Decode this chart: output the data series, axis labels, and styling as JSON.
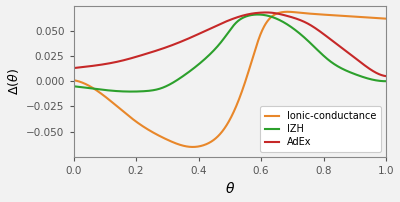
{
  "title": "",
  "xlabel": "$\\theta$",
  "ylabel": "$\\Delta(\\theta)$",
  "xlim": [
    0.0,
    1.0
  ],
  "ylim": [
    -0.075,
    0.075
  ],
  "xticks": [
    0.0,
    0.2,
    0.4,
    0.6,
    0.8,
    1.0
  ],
  "yticks": [
    -0.05,
    -0.025,
    0.0,
    0.025,
    0.05
  ],
  "colors": {
    "ionic": "#E8872A",
    "izh": "#2CA02C",
    "adex": "#C62828"
  },
  "background": "#f2f2f2",
  "n_points": 1000,
  "ionic_pts": [
    [
      0.0,
      0.001
    ],
    [
      0.04,
      -0.003
    ],
    [
      0.1,
      -0.015
    ],
    [
      0.2,
      -0.04
    ],
    [
      0.3,
      -0.058
    ],
    [
      0.37,
      -0.065
    ],
    [
      0.42,
      -0.063
    ],
    [
      0.48,
      -0.048
    ],
    [
      0.52,
      -0.025
    ],
    [
      0.56,
      0.01
    ],
    [
      0.6,
      0.048
    ],
    [
      0.63,
      0.063
    ],
    [
      0.66,
      0.068
    ],
    [
      0.72,
      0.068
    ],
    [
      0.8,
      0.066
    ],
    [
      0.9,
      0.064
    ],
    [
      1.0,
      0.062
    ]
  ],
  "izh_pts": [
    [
      0.0,
      -0.005
    ],
    [
      0.08,
      -0.008
    ],
    [
      0.15,
      -0.01
    ],
    [
      0.22,
      -0.01
    ],
    [
      0.28,
      -0.007
    ],
    [
      0.35,
      0.005
    ],
    [
      0.42,
      0.022
    ],
    [
      0.48,
      0.042
    ],
    [
      0.52,
      0.058
    ],
    [
      0.55,
      0.064
    ],
    [
      0.58,
      0.066
    ],
    [
      0.62,
      0.065
    ],
    [
      0.68,
      0.057
    ],
    [
      0.75,
      0.04
    ],
    [
      0.82,
      0.02
    ],
    [
      0.9,
      0.007
    ],
    [
      0.95,
      0.002
    ],
    [
      1.0,
      0.0
    ]
  ],
  "adex_pts": [
    [
      0.0,
      0.013
    ],
    [
      0.08,
      0.016
    ],
    [
      0.15,
      0.02
    ],
    [
      0.22,
      0.026
    ],
    [
      0.3,
      0.034
    ],
    [
      0.38,
      0.044
    ],
    [
      0.45,
      0.054
    ],
    [
      0.52,
      0.063
    ],
    [
      0.57,
      0.067
    ],
    [
      0.6,
      0.068
    ],
    [
      0.63,
      0.068
    ],
    [
      0.68,
      0.065
    ],
    [
      0.75,
      0.057
    ],
    [
      0.82,
      0.042
    ],
    [
      0.88,
      0.028
    ],
    [
      0.93,
      0.016
    ],
    [
      0.97,
      0.008
    ],
    [
      1.0,
      0.005
    ]
  ]
}
